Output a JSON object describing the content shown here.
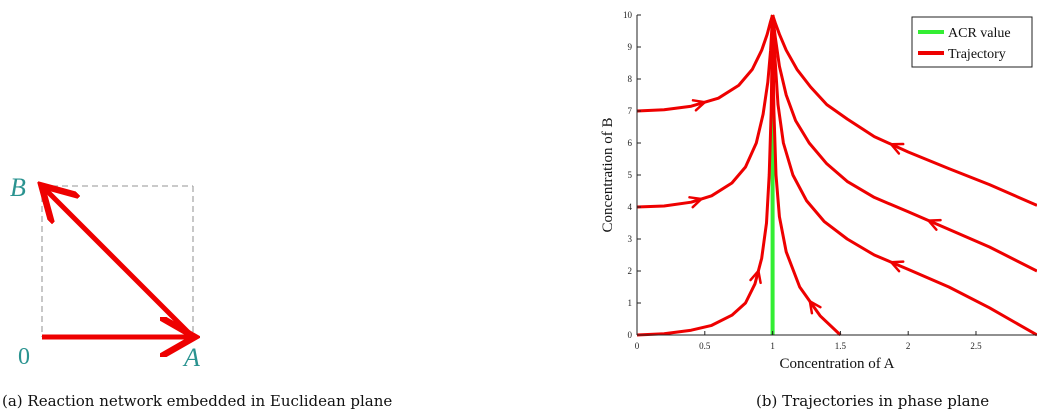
{
  "figure_a": {
    "caption": "(a) Reaction network embedded in Euclidean plane",
    "labels": {
      "origin": "0",
      "a": "A",
      "b": "B"
    },
    "colors": {
      "arrow": "#ee0000",
      "label": "#2a9390",
      "box": "#aaaaaa"
    }
  },
  "figure_b": {
    "caption": "(b) Trajectories in phase plane",
    "chart_data": {
      "type": "line",
      "title": "",
      "xlabel": "Concentration of A",
      "ylabel": "Concentration of B",
      "xlim": [
        0,
        2.95
      ],
      "ylim": [
        0,
        10
      ],
      "x_ticks": [
        "0",
        "0.5",
        "1",
        "1.5",
        "2",
        "2.5"
      ],
      "x_tick_values": [
        0,
        0.5,
        1,
        1.5,
        2,
        2.5
      ],
      "y_ticks": [
        "0",
        "1",
        "2",
        "3",
        "4",
        "5",
        "6",
        "7",
        "8",
        "9",
        "10"
      ],
      "y_tick_values": [
        0,
        1,
        2,
        3,
        4,
        5,
        6,
        7,
        8,
        9,
        10
      ],
      "grid": false,
      "legend": {
        "position": "top-right",
        "entries": [
          {
            "label": "ACR value",
            "color": "#33ee33"
          },
          {
            "label": "Trajectory",
            "color": "#ee0000"
          }
        ]
      },
      "acr_line": {
        "x": 1,
        "color": "#33ee33"
      },
      "trajectory_color": "#ee0000",
      "series": [
        {
          "x": [
            0,
            0.2,
            0.4,
            0.6,
            0.75,
            0.85,
            0.92,
            0.96,
            0.985,
            1.0
          ],
          "y": [
            7.0,
            7.04,
            7.15,
            7.4,
            7.8,
            8.3,
            8.9,
            9.4,
            9.8,
            10
          ]
        },
        {
          "x": [
            0,
            0.2,
            0.4,
            0.55,
            0.7,
            0.8,
            0.88,
            0.93,
            0.965,
            0.985,
            1.0
          ],
          "y": [
            4.0,
            4.03,
            4.15,
            4.35,
            4.75,
            5.25,
            6.0,
            6.9,
            7.9,
            8.9,
            10
          ]
        },
        {
          "x": [
            0,
            0.2,
            0.4,
            0.55,
            0.7,
            0.8,
            0.87,
            0.92,
            0.955,
            0.975,
            0.99,
            1.0
          ],
          "y": [
            0,
            0.04,
            0.15,
            0.3,
            0.62,
            1.0,
            1.6,
            2.4,
            3.5,
            5.0,
            7.0,
            10
          ]
        },
        {
          "x": [
            1.5,
            1.35,
            1.2,
            1.1,
            1.05,
            1.025,
            1.01,
            1.0
          ],
          "y": [
            0,
            0.6,
            1.5,
            2.6,
            3.7,
            5.0,
            7.0,
            10
          ]
        },
        {
          "x": [
            2.95,
            2.6,
            2.3,
            2.0,
            1.75,
            1.55,
            1.38,
            1.25,
            1.15,
            1.08,
            1.04,
            1.02,
            1.0
          ],
          "y": [
            0,
            0.85,
            1.5,
            2.05,
            2.5,
            3.0,
            3.55,
            4.2,
            5.0,
            6.0,
            7.2,
            8.5,
            10
          ]
        },
        {
          "x": [
            2.95,
            2.6,
            2.3,
            2.0,
            1.75,
            1.55,
            1.4,
            1.27,
            1.17,
            1.1,
            1.05,
            1.02,
            1.0
          ],
          "y": [
            2.0,
            2.75,
            3.3,
            3.85,
            4.3,
            4.8,
            5.35,
            6.0,
            6.7,
            7.5,
            8.4,
            9.3,
            10
          ]
        },
        {
          "x": [
            2.95,
            2.6,
            2.3,
            2.0,
            1.75,
            1.55,
            1.4,
            1.28,
            1.18,
            1.1,
            1.05,
            1.02,
            1.0
          ],
          "y": [
            4.05,
            4.7,
            5.2,
            5.72,
            6.2,
            6.75,
            7.2,
            7.75,
            8.3,
            8.9,
            9.4,
            9.75,
            10
          ]
        }
      ],
      "arrow_marks": [
        {
          "series": 0,
          "at": 2
        },
        {
          "series": 1,
          "at": 2
        },
        {
          "series": 2,
          "at": 6
        },
        {
          "series": 3,
          "at": 1
        },
        {
          "series": 4,
          "at": 3
        },
        {
          "series": 5,
          "at": 2
        },
        {
          "series": 6,
          "at": 3
        }
      ]
    }
  }
}
